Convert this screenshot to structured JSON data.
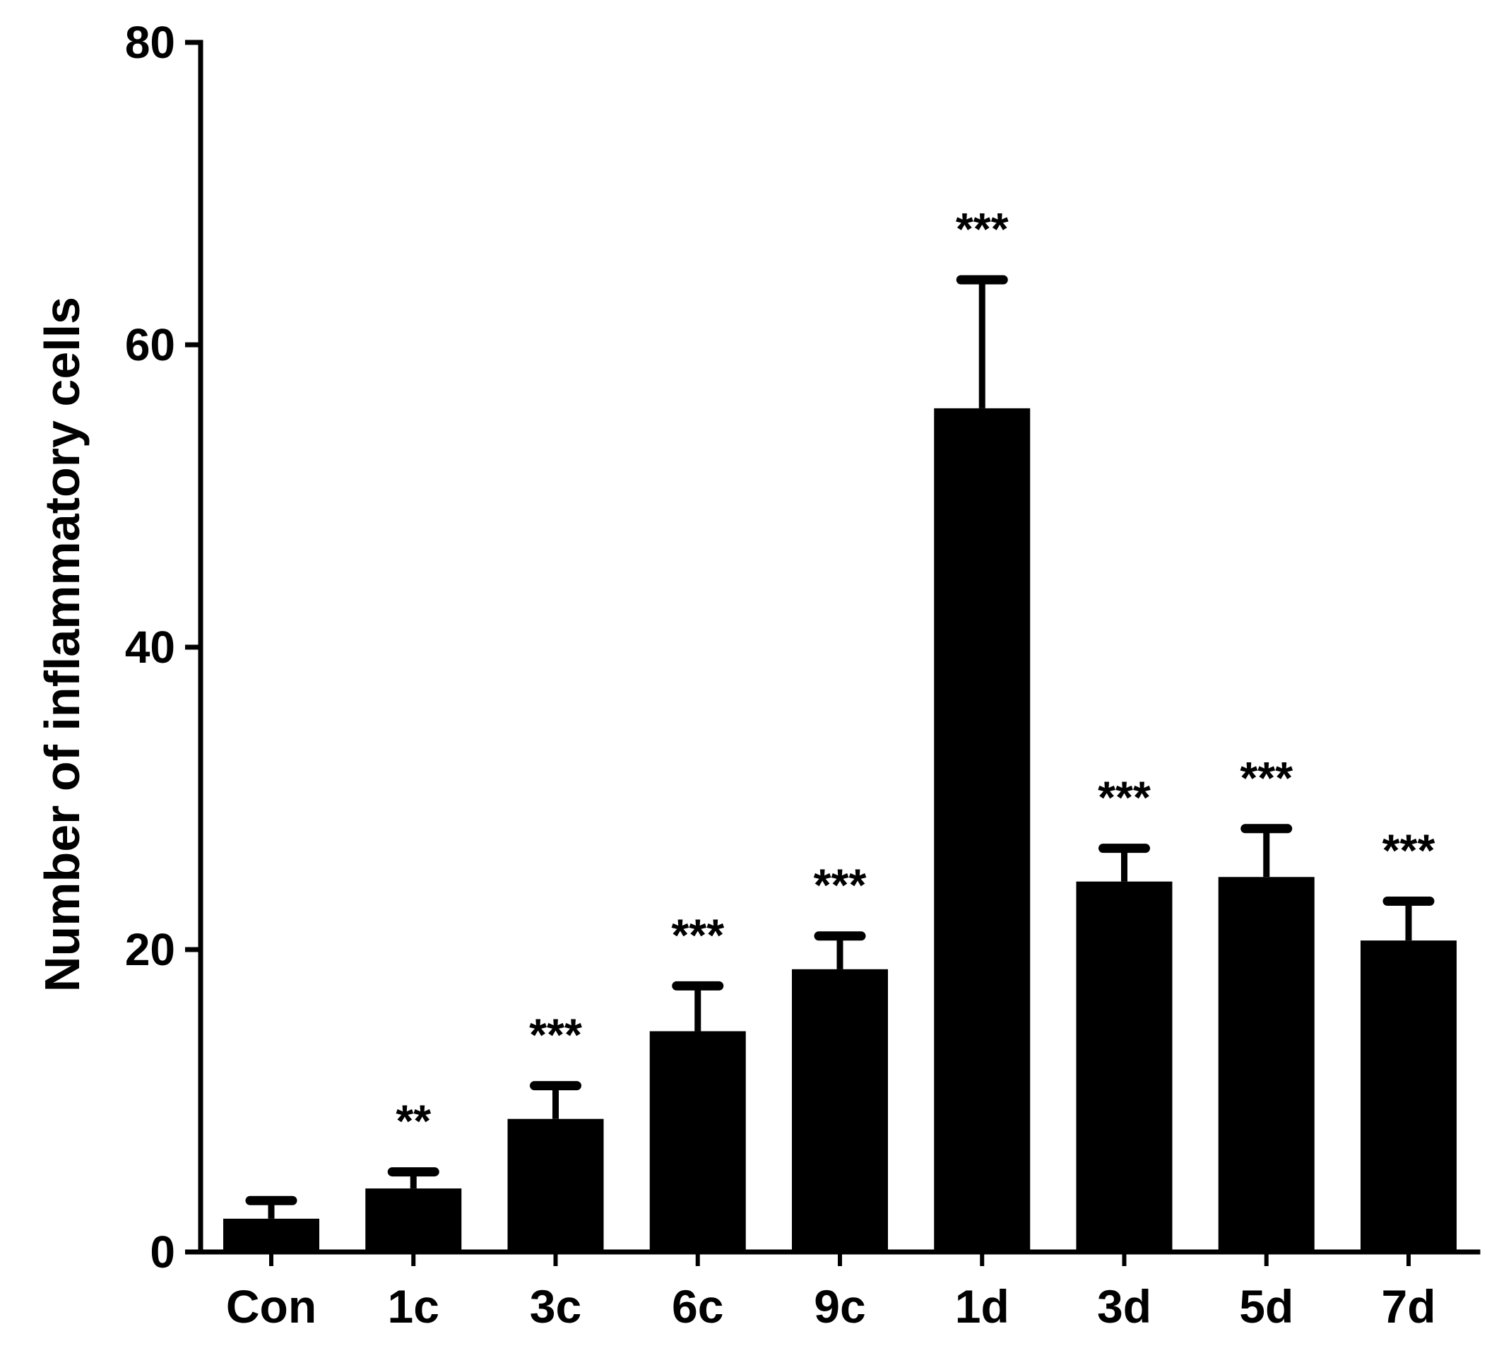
{
  "chart_data": {
    "type": "bar",
    "categories": [
      "Con",
      "1c",
      "3c",
      "6c",
      "9c",
      "1d",
      "3d",
      "5d",
      "7d"
    ],
    "values": [
      2.2,
      4.2,
      8.8,
      14.6,
      18.7,
      55.8,
      24.5,
      24.8,
      20.6
    ],
    "errors": [
      1.2,
      1.1,
      2.2,
      3.0,
      2.2,
      8.5,
      2.2,
      3.2,
      2.6
    ],
    "significance": [
      "",
      "**",
      "***",
      "***",
      "***",
      "***",
      "***",
      "***",
      "***"
    ],
    "ylabel": "Number of  inflammatory cells",
    "xlabel": "",
    "title": "",
    "ylim": [
      0,
      80
    ],
    "yticks": [
      0,
      20,
      40,
      60,
      80
    ],
    "grid": false,
    "colors": {
      "bar": "#000000",
      "axis": "#000000",
      "background": "#ffffff"
    }
  }
}
